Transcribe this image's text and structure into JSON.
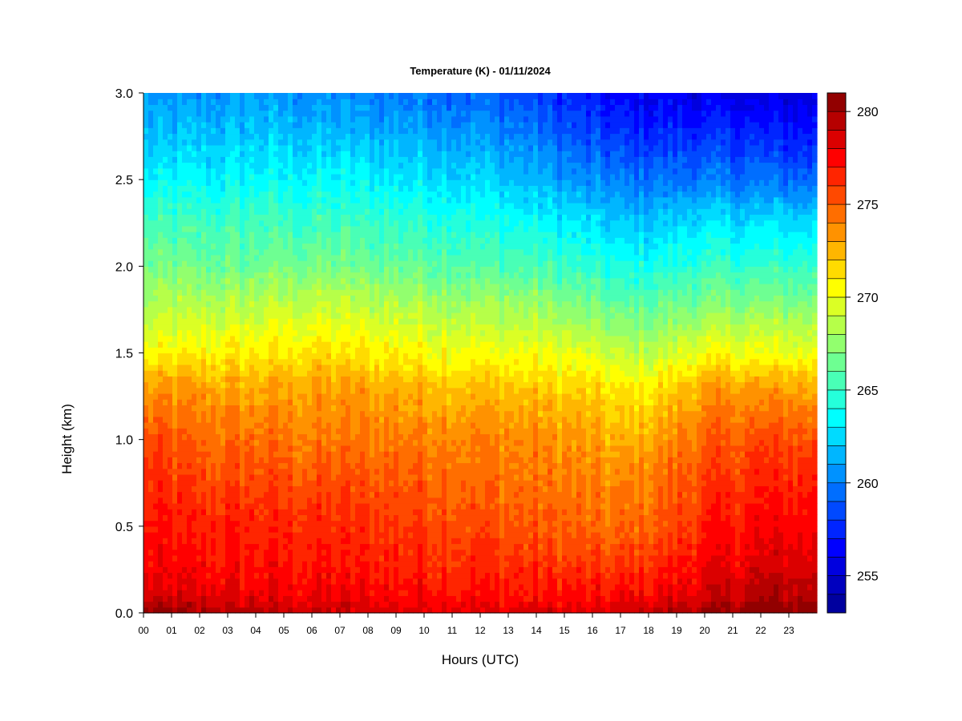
{
  "chart_data": {
    "type": "heatmap",
    "title": "Temperature (K) - 01/11/2024",
    "xlabel": "Hours (UTC)",
    "ylabel": "Height (km)",
    "x_tick_labels": [
      "00",
      "01",
      "02",
      "03",
      "04",
      "05",
      "06",
      "07",
      "08",
      "09",
      "10",
      "11",
      "12",
      "13",
      "14",
      "15",
      "16",
      "17",
      "18",
      "19",
      "20",
      "21",
      "22",
      "23"
    ],
    "xlim": [
      0,
      24
    ],
    "y_ticks": [
      0.0,
      0.5,
      1.0,
      1.5,
      2.0,
      2.5,
      3.0
    ],
    "y_tick_labels": [
      "0.0",
      "0.5",
      "1.0",
      "1.5",
      "2.0",
      "2.5",
      "3.0"
    ],
    "ylim": [
      0,
      3.0
    ],
    "colorbar": {
      "ticks": [
        255,
        260,
        265,
        270,
        275,
        280
      ],
      "tick_labels": [
        "255",
        "260",
        "265",
        "270",
        "275",
        "280"
      ],
      "range": [
        253,
        281
      ],
      "levels": 28,
      "colormap": [
        "#00008f",
        "#0000ff",
        "#0080ff",
        "#00ffff",
        "#80ff80",
        "#ffff00",
        "#ff8000",
        "#ff0000",
        "#800000"
      ]
    },
    "profile_heights_km": [
      0.0,
      0.1,
      0.3,
      0.5,
      0.8,
      1.0,
      1.3,
      1.5,
      1.8,
      2.0,
      2.3,
      2.5,
      2.8,
      3.0
    ],
    "profiles": [
      {
        "hour": 0,
        "temps_k": [
          280.5,
          278.5,
          277.3,
          277.0,
          276.2,
          275.4,
          273.5,
          270.2,
          268.0,
          266.8,
          264.8,
          263.3,
          261.5,
          260.5
        ]
      },
      {
        "hour": 2,
        "temps_k": [
          279.8,
          278.3,
          277.2,
          276.8,
          275.5,
          274.8,
          273.0,
          270.8,
          268.3,
          266.5,
          264.8,
          263.3,
          261.5,
          260.5
        ]
      },
      {
        "hour": 4,
        "temps_k": [
          279.3,
          278.0,
          277.1,
          276.7,
          275.5,
          274.5,
          272.8,
          271.0,
          268.5,
          266.5,
          265.0,
          263.5,
          261.8,
          260.8
        ]
      },
      {
        "hour": 6,
        "temps_k": [
          279.0,
          277.8,
          277.0,
          276.5,
          275.2,
          274.2,
          273.2,
          271.2,
          268.8,
          266.8,
          264.8,
          263.5,
          261.5,
          260.5
        ]
      },
      {
        "hour": 8,
        "temps_k": [
          278.8,
          277.7,
          276.8,
          276.3,
          275.2,
          274.3,
          273.0,
          271.0,
          268.5,
          266.5,
          264.8,
          263.3,
          261.2,
          260.2
        ]
      },
      {
        "hour": 10,
        "temps_k": [
          278.5,
          277.5,
          276.6,
          276.0,
          275.0,
          274.2,
          272.6,
          270.6,
          268.3,
          266.3,
          264.5,
          263.0,
          261.0,
          259.8
        ]
      },
      {
        "hour": 12,
        "temps_k": [
          278.3,
          277.3,
          276.4,
          275.6,
          274.6,
          274.0,
          272.2,
          270.3,
          267.8,
          265.8,
          264.0,
          262.5,
          260.5,
          259.2
        ]
      },
      {
        "hour": 14,
        "temps_k": [
          278.3,
          277.2,
          276.0,
          275.0,
          274.2,
          273.8,
          272.0,
          270.0,
          267.5,
          265.5,
          263.2,
          261.5,
          259.5,
          258.0
        ]
      },
      {
        "hour": 16,
        "temps_k": [
          278.5,
          277.2,
          275.8,
          274.5,
          273.8,
          273.0,
          271.5,
          269.5,
          266.5,
          264.5,
          262.2,
          260.2,
          258.0,
          256.8
        ]
      },
      {
        "hour": 17,
        "temps_k": [
          278.6,
          277.4,
          275.8,
          274.4,
          273.6,
          272.5,
          270.8,
          268.5,
          266.0,
          264.0,
          261.5,
          259.8,
          257.5,
          256.3
        ]
      },
      {
        "hour": 18,
        "temps_k": [
          279.0,
          277.8,
          276.2,
          275.0,
          274.0,
          273.0,
          271.0,
          268.8,
          266.0,
          264.2,
          261.6,
          259.6,
          257.3,
          256.0
        ]
      },
      {
        "hour": 20,
        "temps_k": [
          280.0,
          278.5,
          277.5,
          276.8,
          275.6,
          274.8,
          273.0,
          270.2,
          266.8,
          264.8,
          262.3,
          259.8,
          257.3,
          255.8
        ]
      },
      {
        "hour": 22,
        "temps_k": [
          281.0,
          279.5,
          278.3,
          277.6,
          276.5,
          275.5,
          273.2,
          270.2,
          267.0,
          265.0,
          262.2,
          259.5,
          257.0,
          255.5
        ]
      },
      {
        "hour": 24,
        "temps_k": [
          281.0,
          279.5,
          278.5,
          277.6,
          276.5,
          275.5,
          273.0,
          270.0,
          267.0,
          265.0,
          262.0,
          259.3,
          256.8,
          255.3
        ]
      }
    ]
  }
}
